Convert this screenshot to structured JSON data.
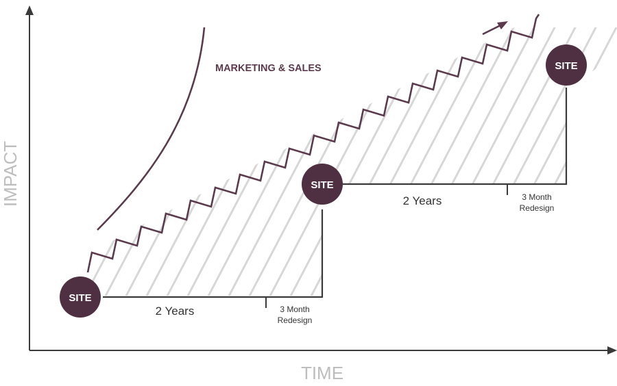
{
  "axes": {
    "y_label": "IMPACT",
    "x_label": "TIME"
  },
  "curve_label": "MARKETING & SALES",
  "sites": [
    {
      "label": "SITE"
    },
    {
      "label": "SITE"
    },
    {
      "label": "SITE"
    }
  ],
  "phases": [
    {
      "duration": "2 Years",
      "redesign_line1": "3 Month",
      "redesign_line2": "Redesign"
    },
    {
      "duration": "2 Years",
      "redesign_line1": "3 Month",
      "redesign_line2": "Redesign"
    }
  ],
  "colors": {
    "accent": "#4f2f42",
    "axis": "#3a3a3a",
    "hatch": "#d7d7d7",
    "axis_label": "#bdbdbd"
  }
}
